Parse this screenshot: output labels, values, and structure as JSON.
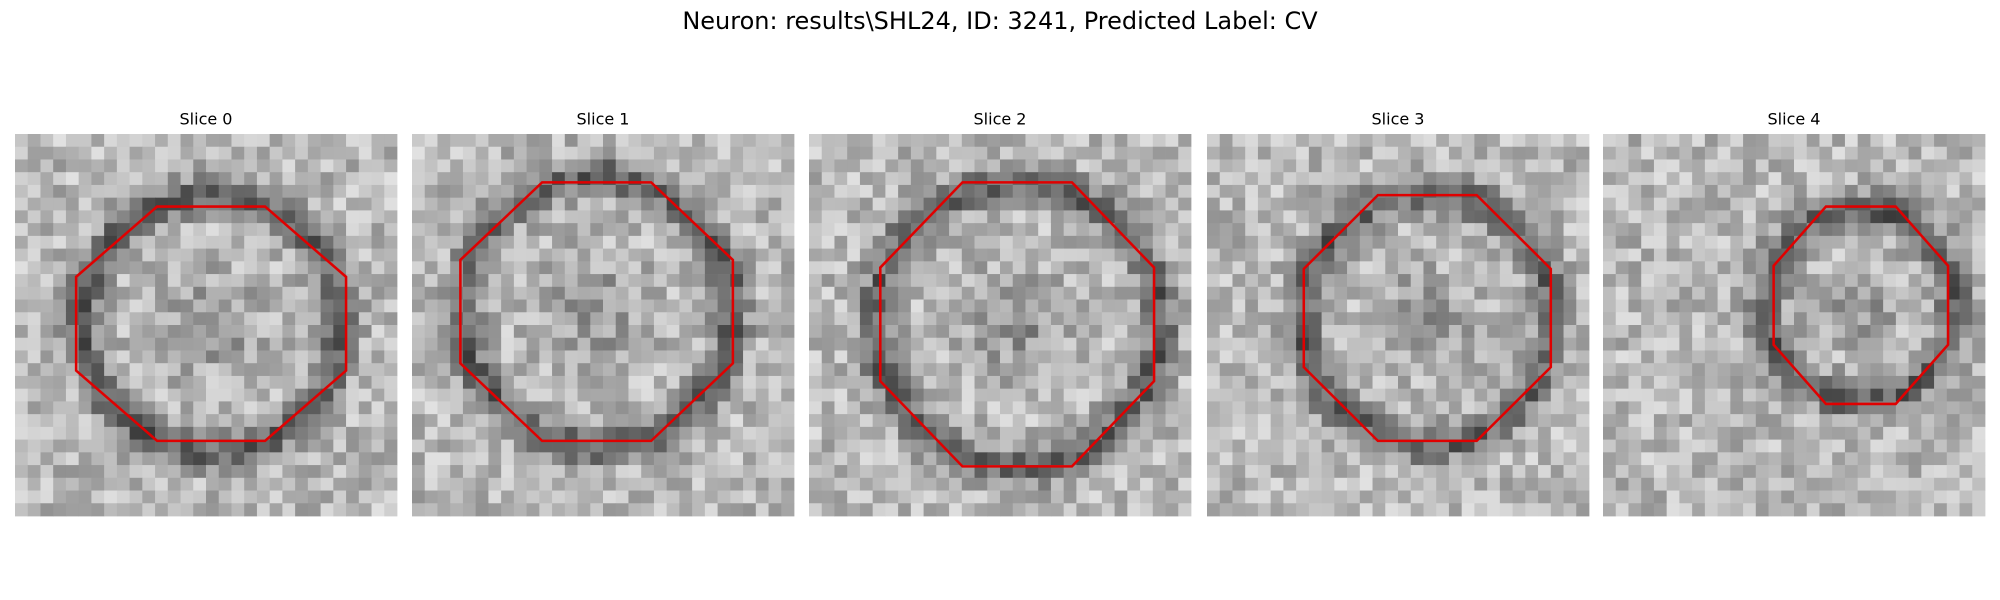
{
  "title": "Neuron: results\\SHL24, ID: 3241, Predicted Label: CV",
  "panels": [
    {
      "title": "Slice 0"
    },
    {
      "title": "Slice 1"
    },
    {
      "title": "Slice 2"
    },
    {
      "title": "Slice 3"
    },
    {
      "title": "Slice 4"
    }
  ]
}
